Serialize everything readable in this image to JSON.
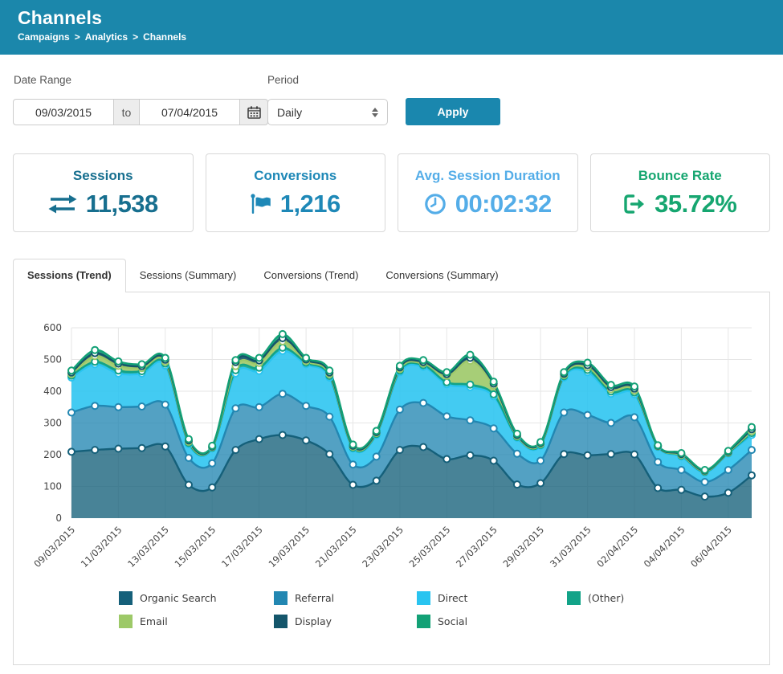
{
  "theme": {
    "header_bg": "#1B87AB",
    "apply_bg": "#1A87AE",
    "panel_border": "#d9d9d9",
    "grid_color": "#e6e6e6",
    "axis_text_color": "#444444"
  },
  "header": {
    "title": "Channels",
    "breadcrumb": [
      "Campaigns",
      "Analytics",
      "Channels"
    ],
    "separator": ">"
  },
  "filters": {
    "date_range_label": "Date Range",
    "date_from": "09/03/2015",
    "to_label": "to",
    "date_to": "07/04/2015",
    "period_label": "Period",
    "period_value": "Daily",
    "apply_label": "Apply"
  },
  "icons": {
    "date_picker": "calendar-icon",
    "period_stepper": "select-stepper-icon",
    "sessions": "exchange-arrows-icon",
    "conversions": "flag-icon",
    "avg_session_duration": "clock-icon",
    "bounce_rate": "sign-out-icon"
  },
  "cards": [
    {
      "title": "Sessions",
      "value": "11,538",
      "icon": "exchange-arrows-icon",
      "color": "#176F8F"
    },
    {
      "title": "Conversions",
      "value": "1,216",
      "icon": "flag-icon",
      "color": "#1E88B7"
    },
    {
      "title": "Avg. Session Duration",
      "value": "00:02:32",
      "icon": "clock-icon",
      "color": "#54ADE8"
    },
    {
      "title": "Bounce Rate",
      "value": "35.72%",
      "icon": "sign-out-icon",
      "color": "#16A670"
    }
  ],
  "tabs": [
    {
      "label": "Sessions (Trend)",
      "active": true
    },
    {
      "label": "Sessions (Summary)",
      "active": false
    },
    {
      "label": "Conversions (Trend)",
      "active": false
    },
    {
      "label": "Conversions (Summary)",
      "active": false
    }
  ],
  "chart_data": {
    "type": "area",
    "stacked": true,
    "title": "",
    "xlabel": "",
    "ylabel": "",
    "ylim": [
      0,
      600
    ],
    "y_ticks": [
      0,
      100,
      200,
      300,
      400,
      500,
      600
    ],
    "grid": true,
    "legend_position": "bottom",
    "x_tick_every": 2,
    "x": [
      "09/03/2015",
      "10/03/2015",
      "11/03/2015",
      "12/03/2015",
      "13/03/2015",
      "14/03/2015",
      "15/03/2015",
      "16/03/2015",
      "17/03/2015",
      "18/03/2015",
      "19/03/2015",
      "20/03/2015",
      "21/03/2015",
      "22/03/2015",
      "23/03/2015",
      "24/03/2015",
      "25/03/2015",
      "26/03/2015",
      "27/03/2015",
      "28/03/2015",
      "29/03/2015",
      "30/03/2015",
      "31/03/2015",
      "01/04/2015",
      "02/04/2015",
      "03/04/2015",
      "04/04/2015",
      "05/04/2015",
      "06/04/2015",
      "07/04/2015"
    ],
    "series": [
      {
        "name": "Organic Search",
        "color": "#15607A",
        "fill_opacity": 0.78,
        "values": [
          209,
          215,
          219,
          221,
          226,
          105,
          97,
          215,
          249,
          262,
          245,
          202,
          105,
          118,
          215,
          224,
          186,
          198,
          181,
          106,
          110,
          202,
          198,
          202,
          201,
          95,
          89,
          68,
          80,
          135
        ]
      },
      {
        "name": "Referral",
        "color": "#2287B2",
        "fill_opacity": 0.78,
        "values": [
          124,
          139,
          131,
          131,
          132,
          85,
          76,
          131,
          101,
          130,
          109,
          118,
          64,
          76,
          127,
          139,
          135,
          110,
          102,
          97,
          71,
          131,
          127,
          98,
          117,
          82,
          63,
          46,
          72,
          80
        ]
      },
      {
        "name": "Direct",
        "color": "#29C4F0",
        "fill_opacity": 0.88,
        "values": [
          110,
          131,
          106,
          104,
          123,
          43,
          47,
          110,
          114,
          135,
          131,
          123,
          50,
          68,
          118,
          114,
          101,
          105,
          101,
          50,
          47,
          110,
          135,
          92,
          72,
          47,
          42,
          30,
          51,
          47
        ]
      },
      {
        "name": "(Other)",
        "color": "#12A388",
        "fill_opacity": 0.9,
        "values": [
          6,
          8,
          9,
          7,
          6,
          4,
          2,
          10,
          10,
          10,
          5,
          5,
          3,
          3,
          5,
          5,
          6,
          8,
          6,
          3,
          3,
          4,
          7,
          7,
          6,
          2,
          3,
          2,
          2,
          6
        ]
      },
      {
        "name": "Email",
        "color": "#9DC968",
        "fill_opacity": 0.9,
        "values": [
          5,
          18,
          15,
          10,
          6,
          4,
          2,
          13,
          15,
          20,
          5,
          6,
          3,
          3,
          5,
          5,
          20,
          75,
          28,
          3,
          3,
          4,
          8,
          7,
          6,
          1,
          2,
          2,
          2,
          6
        ]
      },
      {
        "name": "Display",
        "color": "#14566B",
        "fill_opacity": 0.9,
        "values": [
          5,
          9,
          7,
          6,
          6,
          4,
          2,
          13,
          8,
          10,
          5,
          5,
          3,
          3,
          5,
          5,
          6,
          9,
          6,
          3,
          3,
          4,
          7,
          7,
          6,
          1,
          3,
          2,
          2,
          6
        ]
      },
      {
        "name": "Social",
        "color": "#13A176",
        "fill_opacity": 0.9,
        "values": [
          6,
          10,
          7,
          6,
          6,
          4,
          2,
          6,
          8,
          13,
          5,
          6,
          4,
          4,
          5,
          6,
          6,
          10,
          6,
          4,
          3,
          5,
          8,
          7,
          7,
          2,
          3,
          2,
          3,
          7
        ]
      }
    ]
  }
}
